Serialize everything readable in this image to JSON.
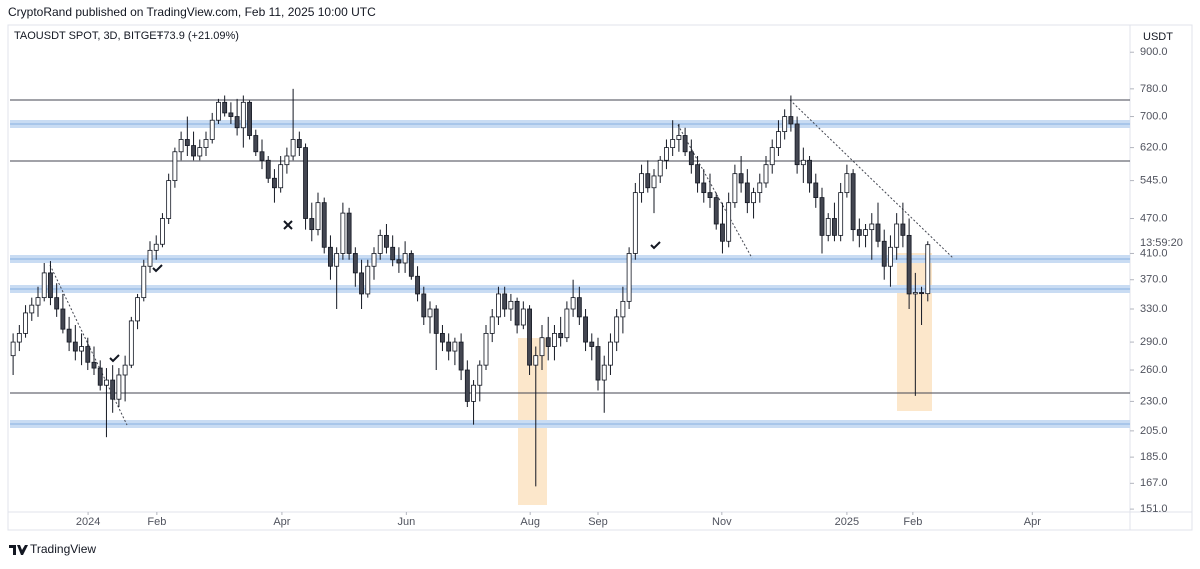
{
  "header": {
    "title": "CryptoRand published on TradingView.com, Feb 11, 2025 10:00 UTC"
  },
  "footer": {
    "brand": "TradingView"
  },
  "chart_data": {
    "type": "candlestick",
    "legend": {
      "symbol": "TAOUSDT SPOT, 3D, BITGET",
      "change": "+73.9 (+21.09%)"
    },
    "currency": "USDT",
    "countdown": "13:59:20",
    "log_scale": true,
    "up_color": "#ffffff",
    "down_color": "#434651",
    "border_color": "#131722",
    "xlim": [
      -0.5,
      179.5
    ],
    "xticks": [
      {
        "value": 12.05,
        "label": "2024"
      },
      {
        "value": 23.1,
        "label": "Feb"
      },
      {
        "value": 43.2,
        "label": "Apr"
      },
      {
        "value": 63.2,
        "label": "Jun"
      },
      {
        "value": 83.1,
        "label": "Aug"
      },
      {
        "value": 94.0,
        "label": "Sep"
      },
      {
        "value": 113.9,
        "label": "Nov"
      },
      {
        "value": 134.0,
        "label": "2025"
      },
      {
        "value": 144.6,
        "label": "Feb"
      },
      {
        "value": 163.8,
        "label": "Apr"
      }
    ],
    "ylim": [
      149.3,
      1001
    ],
    "yticks": [
      {
        "value": 900,
        "label": "900.0"
      },
      {
        "value": 780,
        "label": "780.0"
      },
      {
        "value": 700,
        "label": "700.0"
      },
      {
        "value": 620,
        "label": "620.0"
      },
      {
        "value": 545,
        "label": "545.0"
      },
      {
        "value": 470,
        "label": "470.0"
      },
      {
        "value": 410,
        "label": "410.0"
      },
      {
        "value": 370,
        "label": "370.0"
      },
      {
        "value": 330,
        "label": "330.0"
      },
      {
        "value": 290,
        "label": "290.0"
      },
      {
        "value": 260,
        "label": "260.0"
      },
      {
        "value": 230,
        "label": "230.0"
      },
      {
        "value": 205,
        "label": "205.0"
      },
      {
        "value": 185,
        "label": "185.0"
      },
      {
        "value": 167,
        "label": "167.0"
      },
      {
        "value": 151,
        "label": "151.0"
      }
    ],
    "candles": [
      [
        275,
        300,
        255,
        290
      ],
      [
        290,
        310,
        280,
        300
      ],
      [
        300,
        335,
        295,
        325
      ],
      [
        325,
        345,
        315,
        335
      ],
      [
        335,
        360,
        320,
        345
      ],
      [
        345,
        395,
        340,
        380
      ],
      [
        380,
        398,
        335,
        345
      ],
      [
        345,
        365,
        320,
        330
      ],
      [
        330,
        350,
        300,
        305
      ],
      [
        305,
        320,
        280,
        290
      ],
      [
        290,
        310,
        270,
        280
      ],
      [
        280,
        300,
        265,
        285
      ],
      [
        285,
        295,
        260,
        268
      ],
      [
        268,
        285,
        255,
        262
      ],
      [
        262,
        270,
        240,
        245
      ],
      [
        245,
        262,
        200,
        250
      ],
      [
        250,
        265,
        220,
        232
      ],
      [
        232,
        262,
        225,
        255
      ],
      [
        255,
        275,
        230,
        265
      ],
      [
        265,
        320,
        262,
        315
      ],
      [
        315,
        350,
        305,
        345
      ],
      [
        345,
        400,
        340,
        390
      ],
      [
        390,
        430,
        380,
        415
      ],
      [
        415,
        440,
        400,
        425
      ],
      [
        425,
        480,
        420,
        470
      ],
      [
        470,
        560,
        460,
        545
      ],
      [
        545,
        620,
        530,
        610
      ],
      [
        610,
        660,
        590,
        640
      ],
      [
        640,
        700,
        600,
        625
      ],
      [
        625,
        660,
        590,
        600
      ],
      [
        600,
        640,
        590,
        620
      ],
      [
        620,
        660,
        600,
        640
      ],
      [
        640,
        710,
        630,
        690
      ],
      [
        690,
        750,
        680,
        740
      ],
      [
        740,
        760,
        700,
        710
      ],
      [
        710,
        740,
        680,
        700
      ],
      [
        700,
        750,
        650,
        670
      ],
      [
        670,
        760,
        620,
        740
      ],
      [
        740,
        745,
        640,
        650
      ],
      [
        650,
        665,
        600,
        610
      ],
      [
        610,
        640,
        570,
        590
      ],
      [
        590,
        600,
        540,
        550
      ],
      [
        550,
        570,
        500,
        530
      ],
      [
        530,
        600,
        520,
        580
      ],
      [
        580,
        620,
        560,
        600
      ],
      [
        600,
        780,
        590,
        640
      ],
      [
        640,
        660,
        600,
        620
      ],
      [
        620,
        630,
        450,
        470
      ],
      [
        470,
        500,
        430,
        450
      ],
      [
        450,
        520,
        440,
        500
      ],
      [
        500,
        510,
        410,
        420
      ],
      [
        420,
        440,
        370,
        390
      ],
      [
        390,
        420,
        330,
        410
      ],
      [
        410,
        500,
        400,
        480
      ],
      [
        480,
        490,
        400,
        410
      ],
      [
        410,
        420,
        360,
        380
      ],
      [
        380,
        400,
        330,
        350
      ],
      [
        350,
        400,
        345,
        390
      ],
      [
        390,
        420,
        370,
        410
      ],
      [
        410,
        450,
        400,
        440
      ],
      [
        440,
        460,
        410,
        420
      ],
      [
        420,
        440,
        390,
        400
      ],
      [
        400,
        420,
        380,
        395
      ],
      [
        395,
        430,
        380,
        410
      ],
      [
        410,
        415,
        370,
        375
      ],
      [
        375,
        390,
        340,
        350
      ],
      [
        350,
        360,
        310,
        320
      ],
      [
        320,
        340,
        300,
        330
      ],
      [
        330,
        335,
        260,
        300
      ],
      [
        300,
        310,
        280,
        290
      ],
      [
        290,
        300,
        270,
        280
      ],
      [
        280,
        295,
        265,
        290
      ],
      [
        290,
        300,
        250,
        260
      ],
      [
        260,
        270,
        225,
        230
      ],
      [
        230,
        250,
        210,
        245
      ],
      [
        245,
        270,
        230,
        265
      ],
      [
        265,
        310,
        260,
        300
      ],
      [
        300,
        330,
        290,
        320
      ],
      [
        320,
        360,
        310,
        350
      ],
      [
        350,
        360,
        320,
        330
      ],
      [
        330,
        350,
        315,
        340
      ],
      [
        340,
        345,
        300,
        310
      ],
      [
        310,
        340,
        305,
        330
      ],
      [
        330,
        335,
        255,
        265
      ],
      [
        265,
        285,
        165,
        275
      ],
      [
        275,
        310,
        260,
        295
      ],
      [
        295,
        320,
        270,
        285
      ],
      [
        285,
        310,
        270,
        300
      ],
      [
        300,
        320,
        285,
        295
      ],
      [
        295,
        340,
        290,
        330
      ],
      [
        330,
        370,
        320,
        345
      ],
      [
        345,
        360,
        310,
        320
      ],
      [
        320,
        330,
        280,
        290
      ],
      [
        290,
        300,
        270,
        285
      ],
      [
        285,
        295,
        240,
        250
      ],
      [
        250,
        275,
        220,
        265
      ],
      [
        265,
        300,
        255,
        290
      ],
      [
        290,
        330,
        280,
        320
      ],
      [
        320,
        360,
        300,
        340
      ],
      [
        340,
        420,
        330,
        410
      ],
      [
        410,
        540,
        400,
        520
      ],
      [
        520,
        580,
        500,
        560
      ],
      [
        560,
        590,
        520,
        530
      ],
      [
        530,
        570,
        480,
        555
      ],
      [
        555,
        600,
        540,
        590
      ],
      [
        590,
        640,
        570,
        620
      ],
      [
        620,
        690,
        600,
        640
      ],
      [
        640,
        680,
        610,
        650
      ],
      [
        650,
        670,
        600,
        610
      ],
      [
        610,
        640,
        560,
        580
      ],
      [
        580,
        600,
        520,
        540
      ],
      [
        540,
        570,
        500,
        520
      ],
      [
        520,
        560,
        490,
        510
      ],
      [
        510,
        520,
        450,
        460
      ],
      [
        460,
        500,
        410,
        430
      ],
      [
        430,
        520,
        420,
        500
      ],
      [
        500,
        580,
        490,
        560
      ],
      [
        560,
        600,
        520,
        540
      ],
      [
        540,
        570,
        480,
        500
      ],
      [
        500,
        530,
        470,
        520
      ],
      [
        520,
        560,
        500,
        540
      ],
      [
        540,
        600,
        530,
        580
      ],
      [
        580,
        640,
        560,
        620
      ],
      [
        620,
        690,
        600,
        660
      ],
      [
        660,
        720,
        640,
        700
      ],
      [
        700,
        760,
        660,
        680
      ],
      [
        680,
        700,
        560,
        580
      ],
      [
        580,
        620,
        540,
        590
      ],
      [
        590,
        600,
        520,
        540
      ],
      [
        540,
        560,
        490,
        510
      ],
      [
        510,
        530,
        410,
        440
      ],
      [
        440,
        480,
        430,
        470
      ],
      [
        470,
        500,
        430,
        440
      ],
      [
        440,
        540,
        430,
        520
      ],
      [
        520,
        580,
        510,
        560
      ],
      [
        560,
        570,
        430,
        450
      ],
      [
        450,
        470,
        420,
        440
      ],
      [
        440,
        460,
        420,
        450
      ],
      [
        450,
        480,
        400,
        460
      ],
      [
        460,
        500,
        420,
        430
      ],
      [
        430,
        450,
        370,
        390
      ],
      [
        390,
        440,
        360,
        420
      ],
      [
        420,
        480,
        400,
        460
      ],
      [
        460,
        500,
        420,
        440
      ],
      [
        440,
        470,
        330,
        350
      ],
      [
        350,
        380,
        235,
        352
      ],
      [
        352,
        360,
        310,
        350.4
      ],
      [
        350.4,
        430,
        340,
        424.3
      ]
    ]
  }
}
